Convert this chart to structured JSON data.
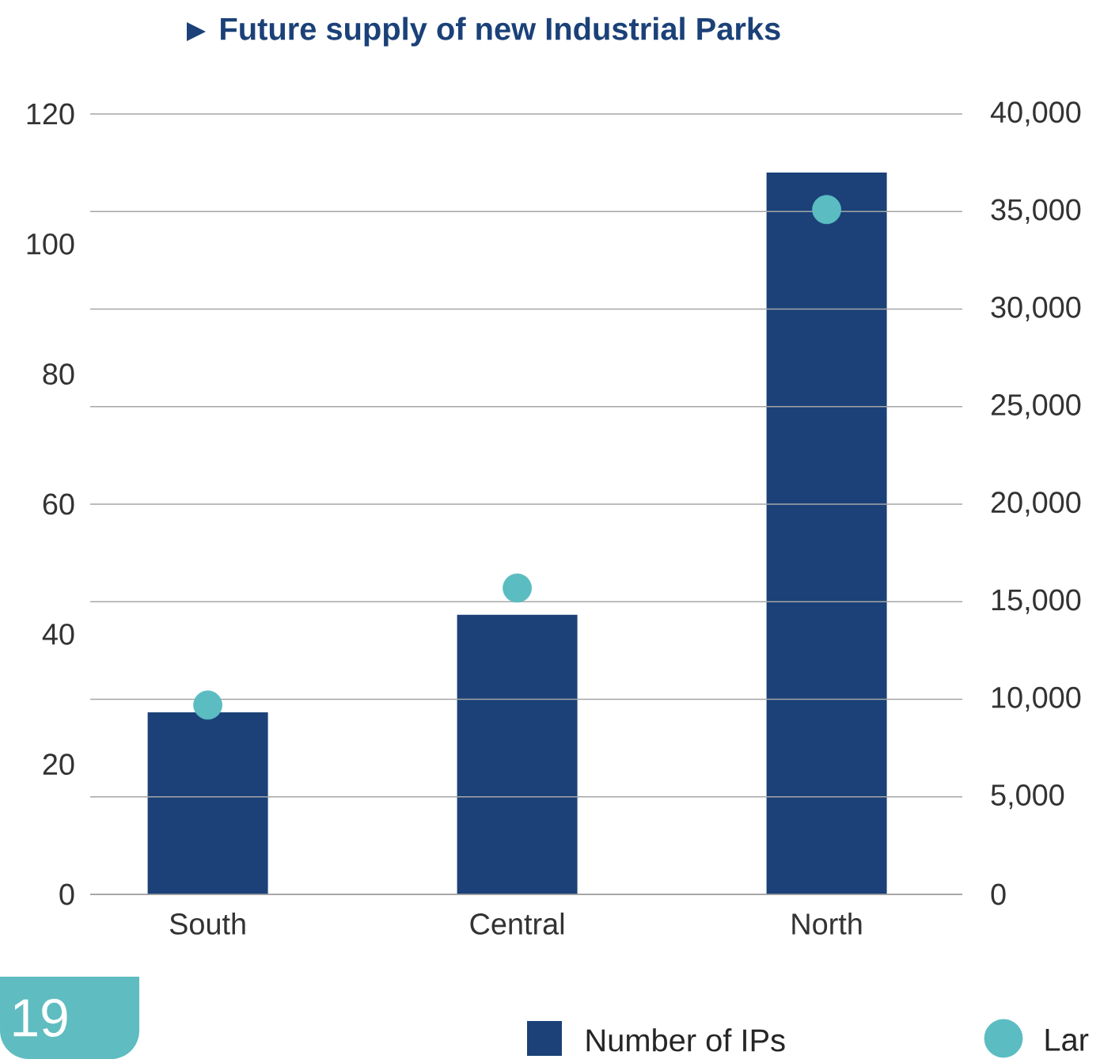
{
  "chart_data": {
    "type": "bar",
    "title": "Future supply of new Industrial Parks",
    "categories": [
      "South",
      "Central",
      "North"
    ],
    "series": [
      {
        "name": "Number of IPs",
        "color": "#1b4178",
        "values": [
          28,
          43,
          111
        ]
      },
      {
        "name": "Lar",
        "type": "scatter",
        "axis": "y2",
        "marker": "circle",
        "color": "#5bbcc2",
        "values": [
          9700,
          15700,
          35100
        ]
      }
    ],
    "ylim": [
      0,
      120
    ],
    "yticks": [
      0,
      20,
      40,
      60,
      80,
      100,
      120
    ],
    "y2lim": [
      0,
      40000
    ],
    "y2ticks": [
      {
        "value": 0,
        "label": "0"
      },
      {
        "value": 5000,
        "label": "5,000"
      },
      {
        "value": 10000,
        "label": "10,000"
      },
      {
        "value": 15000,
        "label": "15,000"
      },
      {
        "value": 20000,
        "label": "20,000"
      },
      {
        "value": 25000,
        "label": "25,000"
      },
      {
        "value": 30000,
        "label": "30,000"
      },
      {
        "value": 35000,
        "label": "35,000"
      },
      {
        "value": 40000,
        "label": "40,000"
      }
    ],
    "grid": "y2",
    "legend": "bottom",
    "annotations": [
      "19"
    ]
  }
}
